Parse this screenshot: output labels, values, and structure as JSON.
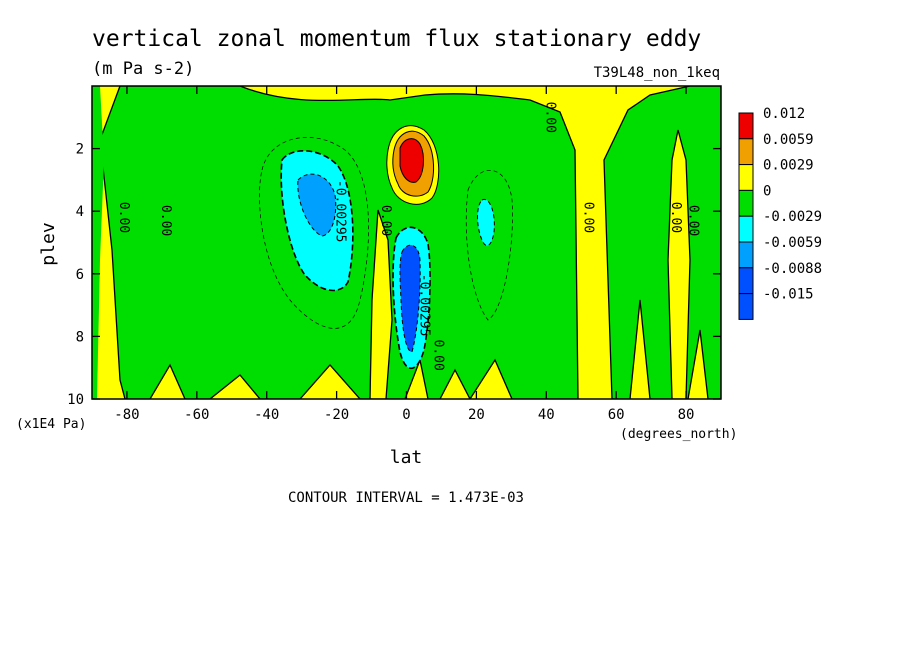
{
  "chart_data": {
    "type": "heatmap",
    "title": "vertical zonal momentum flux stationary eddy",
    "units": "(m Pa s-2)",
    "run_label": "T39L48_non_1keq",
    "xlabel": "lat",
    "x_units": "(degrees_north)",
    "ylabel": "plev",
    "y_units": "(x1E4 Pa)",
    "xlim": [
      -90,
      90
    ],
    "ylim": [
      10,
      0
    ],
    "x_ticks": [
      "-80",
      "-60",
      "-40",
      "-20",
      "0",
      "20",
      "40",
      "60",
      "80"
    ],
    "y_ticks": [
      "2",
      "4",
      "6",
      "8",
      "10"
    ],
    "contour_interval": "CONTOUR INTERVAL = 1.473E-03",
    "legend": [
      {
        "label": "0.012",
        "color": "#ee0000"
      },
      {
        "label": "0.0059",
        "color": "#f0a000"
      },
      {
        "label": "0.0029",
        "color": "#ffff00"
      },
      {
        "label": "0",
        "color": "#00dd00"
      },
      {
        "label": "-0.0029",
        "color": "#00ffff"
      },
      {
        "label": "-0.0059",
        "color": "#00a0ff"
      },
      {
        "label": "-0.0088",
        "color": "#0050ff"
      },
      {
        "label": "-0.015",
        "color": ""
      }
    ],
    "contour_labels": [
      {
        "text": "0.00",
        "lat": -82,
        "plev": 4.2
      },
      {
        "text": "0.00",
        "lat": -70,
        "plev": 4.3
      },
      {
        "text": "-0.00295",
        "lat": -20,
        "plev": 4.0
      },
      {
        "text": "0.00",
        "lat": -7,
        "plev": 4.3
      },
      {
        "text": "-0.00295",
        "lat": 4,
        "plev": 7.0
      },
      {
        "text": "0.00",
        "lat": 8,
        "plev": 8.6
      },
      {
        "text": "0.00",
        "lat": 40,
        "plev": 1.0
      },
      {
        "text": "0.00",
        "lat": 51,
        "plev": 4.2
      },
      {
        "text": "0.00",
        "lat": 76,
        "plev": 4.2
      },
      {
        "text": "0.00",
        "lat": 81,
        "plev": 4.3
      }
    ],
    "features": [
      {
        "sign": "positive",
        "center_lat": 0,
        "center_plev": 2.5,
        "peak": 0.012
      },
      {
        "sign": "negative",
        "center_lat": -25,
        "center_plev": 4.5,
        "peak": -0.0088
      },
      {
        "sign": "negative",
        "center_lat": 2,
        "center_plev": 6.8,
        "peak": -0.0088
      },
      {
        "sign": "negative",
        "center_lat": 22,
        "center_plev": 4.3,
        "peak": -0.0029
      }
    ]
  }
}
